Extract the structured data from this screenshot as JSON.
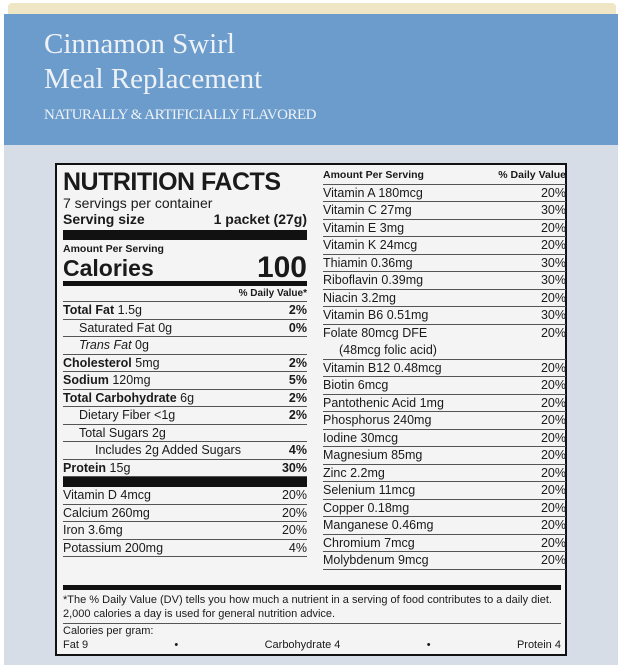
{
  "header": {
    "title": "Cinnamon Swirl",
    "subtitle": "Meal Replacement",
    "flavor": "NATURALLY & ARTIFICIALLY FLAVORED"
  },
  "label": {
    "heading": "NUTRITION FACTS",
    "servings": "7 servings per container",
    "serving_size_label": "Serving size",
    "serving_size": "1 packet (27g)",
    "amount_per_serving": "Amount Per Serving",
    "calories_label": "Calories",
    "calories": "100",
    "dv_header": "% Daily Value*",
    "left_rows": [
      {
        "name": "Total Fat",
        "amount": "1.5g",
        "dv": "2%",
        "bold": true,
        "indent": 0
      },
      {
        "name": "Saturated Fat",
        "amount": "0g",
        "dv": "0%",
        "bold": false,
        "indent": 1
      },
      {
        "name": "Trans Fat",
        "amount": "0g",
        "dv": "",
        "bold": false,
        "indent": 1
      },
      {
        "name": "Cholesterol",
        "amount": "5mg",
        "dv": "2%",
        "bold": true,
        "indent": 0
      },
      {
        "name": "Sodium",
        "amount": "120mg",
        "dv": "5%",
        "bold": true,
        "indent": 0
      },
      {
        "name": "Total Carbohydrate",
        "amount": "6g",
        "dv": "2%",
        "bold": true,
        "indent": 0
      },
      {
        "name": "Dietary Fiber",
        "amount": "<1g",
        "dv": "2%",
        "bold": false,
        "indent": 1
      },
      {
        "name": "Total Sugars",
        "amount": "2g",
        "dv": "",
        "bold": false,
        "indent": 1
      },
      {
        "name": "Includes 2g Added Sugars",
        "amount": "",
        "dv": "4%",
        "bold": false,
        "indent": 2
      },
      {
        "name": "Protein",
        "amount": "15g",
        "dv": "30%",
        "bold": true,
        "indent": 0
      }
    ],
    "left_vitamins": [
      {
        "name": "Vitamin D 4mcg",
        "dv": "20%"
      },
      {
        "name": "Calcium 260mg",
        "dv": "20%"
      },
      {
        "name": "Iron 3.6mg",
        "dv": "20%"
      },
      {
        "name": "Potassium 200mg",
        "dv": "4%"
      }
    ],
    "right_header": {
      "amount": "Amount Per Serving",
      "dv": "% Daily Value"
    },
    "right_rows": [
      {
        "name": "Vitamin A  180mcg",
        "dv": "20%"
      },
      {
        "name": "Vitamin C  27mg",
        "dv": "30%"
      },
      {
        "name": "Vitamin E  3mg",
        "dv": "20%"
      },
      {
        "name": "Vitamin K  24mcg",
        "dv": "20%"
      },
      {
        "name": "Thiamin  0.36mg",
        "dv": "30%"
      },
      {
        "name": "Riboflavin  0.39mg",
        "dv": "30%"
      },
      {
        "name": "Niacin  3.2mg",
        "dv": "20%"
      },
      {
        "name": "Vitamin B6  0.51mg",
        "dv": "30%"
      },
      {
        "name": "Folate  80mcg DFE",
        "dv": "20%"
      },
      {
        "name": "(48mcg folic acid)",
        "dv": ""
      },
      {
        "name": "Vitamin B12  0.48mcg",
        "dv": "20%"
      },
      {
        "name": "Biotin  6mcg",
        "dv": "20%"
      },
      {
        "name": "Pantothenic Acid  1mg",
        "dv": "20%"
      },
      {
        "name": "Phosphorus  240mg",
        "dv": "20%"
      },
      {
        "name": "Iodine  30mcg",
        "dv": "20%"
      },
      {
        "name": "Magnesium  85mg",
        "dv": "20%"
      },
      {
        "name": "Zinc  2.2mg",
        "dv": "20%"
      },
      {
        "name": "Selenium  11mcg",
        "dv": "20%"
      },
      {
        "name": "Copper  0.18mg",
        "dv": "20%"
      },
      {
        "name": "Manganese  0.46mg",
        "dv": "20%"
      },
      {
        "name": "Chromium  7mcg",
        "dv": "20%"
      },
      {
        "name": "Molybdenum  9mcg",
        "dv": "20%"
      }
    ],
    "footnote": "*The % Daily Value (DV) tells you how much a nutrient in a serving of food contributes to a daily diet. 2,000 calories a day is used for general nutrition advice.",
    "cal_per_gram": "Calories per gram:",
    "fat": "Fat 9",
    "carb": "Carbohydrate 4",
    "protein": "Protein 4",
    "bullet": "•"
  }
}
